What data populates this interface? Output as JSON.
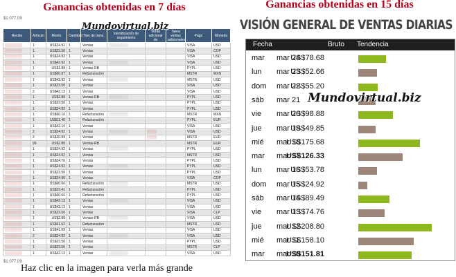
{
  "headings": {
    "left": "Ganancias obtenidas en 7 días",
    "right": "Ganancias obtenidas en 15 días"
  },
  "left_table": {
    "total_top": "$1.077,09",
    "total_bottom": "$1.077,09",
    "headers": [
      "Recibo",
      "Artículo",
      "Monto",
      "Cantidad",
      "Tipo de trans.",
      "Identificación de seguimiento",
      "Venta adicional de",
      "Tarea ventas adicionales",
      "Pago",
      "Moneda"
    ],
    "rows": [
      [
        "1",
        "US$24.92",
        "1",
        "Ventas",
        "VISA",
        "USD"
      ],
      [
        "1",
        "US$23.50",
        "1",
        "Ventas",
        "VISA",
        "COP"
      ],
      [
        "1",
        "US$24.92",
        "1",
        "Ventas",
        "VISA",
        "USD"
      ],
      [
        "1",
        "US$42.92",
        "1",
        "Ventas",
        "VISA",
        "USD"
      ],
      [
        "1",
        "US$1.88",
        "1",
        "Ventas-RB",
        "PYPL",
        "USD"
      ],
      [
        "1",
        "US$60.87",
        "1",
        "Refacturación",
        "MSTR",
        "MXN"
      ],
      [
        "1",
        "US$42.92",
        "1",
        "Ventas",
        "MSTR",
        "USD"
      ],
      [
        "1",
        "US$23.50",
        "1",
        "Ventas",
        "VISA",
        "USD"
      ],
      [
        "2",
        "US$42.13",
        "1",
        "Ventas",
        "VISA",
        "USD"
      ],
      [
        "1",
        "US$2.88",
        "1",
        "Ventas-RB",
        "PYPL",
        "USD"
      ],
      [
        "1",
        "US$23.50",
        "1",
        "Ventas",
        "PYPL",
        "USD"
      ],
      [
        "1",
        "US$24.92",
        "1",
        "Ventas",
        "PYPL",
        "USD"
      ],
      [
        "1",
        "US$60.10",
        "1",
        "Refacturación",
        "MSTR",
        "MXN"
      ],
      [
        "1",
        "US$11.40",
        "1",
        "Refacturación",
        "PYPL",
        "EUR"
      ],
      [
        "1",
        "US$42.10",
        "1",
        "Ventas",
        "VISA",
        "USD"
      ],
      [
        "2",
        "US$24.92",
        "1",
        "Ventas",
        "VISA",
        "USD"
      ],
      [
        "2",
        "US$20.99",
        "1",
        "Ventas",
        "MSTR",
        "EUR"
      ],
      [
        "99",
        "US$2.88",
        "1",
        "Ventas-RB",
        "MSTR",
        "EUR"
      ],
      [
        "1",
        "US$24.92",
        "1",
        "Ventas",
        "PYPL",
        "USD"
      ],
      [
        "1",
        "US$24.92",
        "1",
        "Ventas",
        "MSTR",
        "USD"
      ],
      [
        "1",
        "US$24.76",
        "1",
        "Ventas",
        "PYPL",
        "USD"
      ],
      [
        "1",
        "US$24.92",
        "1",
        "Ventas",
        "PYPL",
        "USD"
      ],
      [
        "1",
        "US$23.50",
        "1",
        "Ventas",
        "PYPL",
        "USD"
      ],
      [
        "1",
        "US$24.90",
        "1",
        "Ventas",
        "VISA",
        "COP"
      ],
      [
        "1",
        "US$60.66",
        "1",
        "Refacturación",
        "MSTR",
        "USD"
      ],
      [
        "1",
        "US$23.41",
        "1",
        "Refacturación",
        "PYPL",
        "USD"
      ],
      [
        "1",
        "US$60.66",
        "1",
        "Refacturación",
        "PYPL",
        "USD"
      ],
      [
        "1",
        "US$42.13",
        "1",
        "Ventas",
        "VISA",
        "USD"
      ],
      [
        "1",
        "US$42.13",
        "1",
        "Ventas",
        "VISA",
        "USD"
      ],
      [
        "1",
        "US$23.50",
        "1",
        "Ventas",
        "VISA",
        "CLP"
      ],
      [
        "1",
        "US$2.88",
        "1",
        "Ventas-RB",
        "VISA",
        "USD"
      ],
      [
        "1",
        "US$61.62",
        "1",
        "Refacturación",
        "MSTR",
        "USD"
      ],
      [
        "1",
        "US$41.09",
        "1",
        "Ventas",
        "VISA",
        "USD"
      ],
      [
        "2",
        "US$24.92",
        "1",
        "Ventas",
        "VISA",
        "USD"
      ],
      [
        "1",
        "US$23.50",
        "1",
        "Ventas",
        "PYPL",
        "USD"
      ],
      [
        "1",
        "US$23.50",
        "1",
        "Ventas",
        "MSTR",
        "CLP"
      ],
      [
        "1",
        "US$42.13",
        "1",
        "Ventas",
        "VISA",
        "USD"
      ]
    ]
  },
  "watermark": "Mundovirtual.biz",
  "caption": "Haz clic en la imagen para verla más grande",
  "sales_panel": {
    "title": "VISIÓN GENERAL DE VENTAS DIARIAS",
    "headers": {
      "fecha": "Fecha",
      "bruto": "Bruto",
      "tendencia": "Tendencia"
    },
    "colors": {
      "up": "#8db81e",
      "down": "#9e857a",
      "header_bg": "#1f1f1f"
    },
    "rows": [
      {
        "dow": "mar",
        "date": "mar 24",
        "amount": "US$78.68",
        "value": 78.68,
        "trend": "up",
        "bold": false
      },
      {
        "dow": "lun",
        "date": "mar 23",
        "amount": "US$52.66",
        "value": 52.66,
        "trend": "down",
        "bold": false
      },
      {
        "dow": "dom",
        "date": "mar 22",
        "amount": "US$55.20",
        "value": 55.2,
        "trend": "up",
        "bold": false
      },
      {
        "dow": "sáb",
        "date": "mar 21",
        "amount": "",
        "value": 50,
        "trend": "down",
        "bold": false
      },
      {
        "dow": "vie",
        "date": "mar 20",
        "amount": "US$98.88",
        "value": 98.88,
        "trend": "up",
        "bold": false
      },
      {
        "dow": "jue",
        "date": "mar 19",
        "amount": "US$49.85",
        "value": 49.85,
        "trend": "down",
        "bold": false
      },
      {
        "dow": "mié",
        "date": "mar 18",
        "amount": "US$175.68",
        "value": 175.68,
        "trend": "up",
        "bold": false
      },
      {
        "dow": "mar",
        "date": "mar 17",
        "amount": "US$126.33",
        "value": 126.33,
        "trend": "down",
        "bold": true
      },
      {
        "dow": "lun",
        "date": "mar 16",
        "amount": "US$53.78",
        "value": 53.78,
        "trend": "down",
        "bold": false
      },
      {
        "dow": "dom",
        "date": "mar 15",
        "amount": "US$24.92",
        "value": 24.92,
        "trend": "down",
        "bold": false
      },
      {
        "dow": "sáb",
        "date": "mar 14",
        "amount": "US$89.49",
        "value": 89.49,
        "trend": "up",
        "bold": false
      },
      {
        "dow": "vie",
        "date": "mar 13",
        "amount": "US$74.76",
        "value": 74.76,
        "trend": "down",
        "bold": false
      },
      {
        "dow": "jue",
        "date": "mar 12",
        "amount": "US$208.80",
        "value": 208.8,
        "trend": "up",
        "bold": false
      },
      {
        "dow": "mié",
        "date": "mar 11",
        "amount": "US$158.10",
        "value": 158.1,
        "trend": "down",
        "bold": false
      },
      {
        "dow": "mar",
        "date": "mar 10",
        "amount": "US$151.81",
        "value": 151.81,
        "trend": "up",
        "bold": true
      }
    ]
  }
}
